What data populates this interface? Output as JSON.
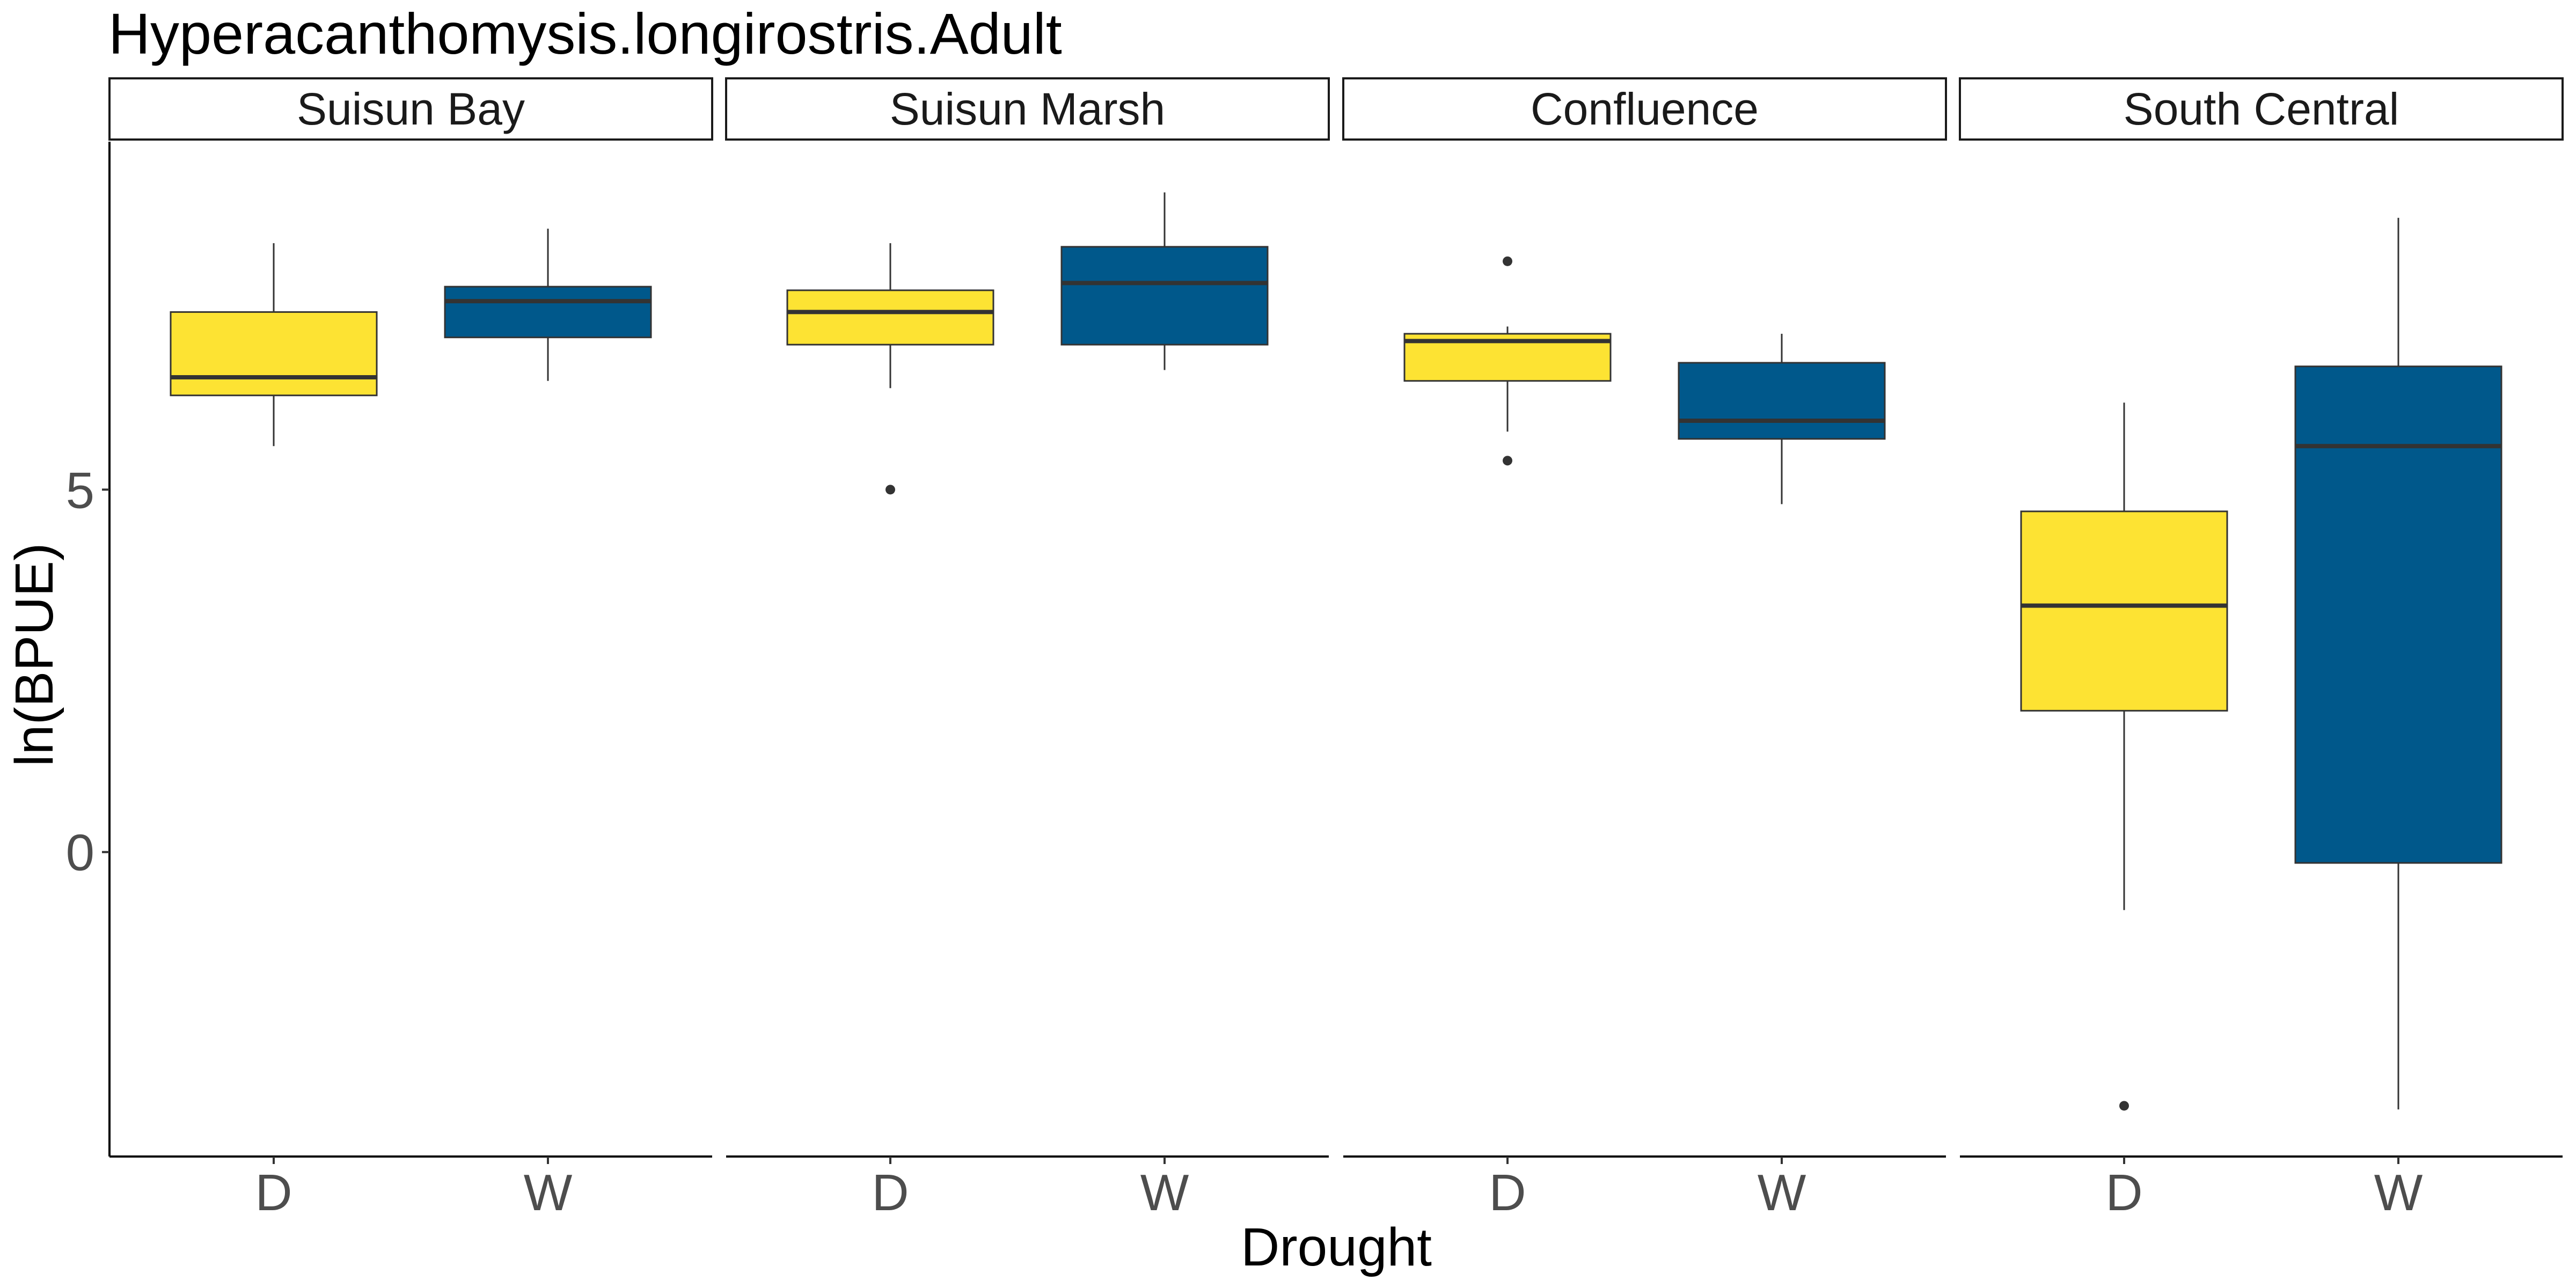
{
  "chart_data": {
    "type": "boxplot",
    "title": "Hyperacanthomysis.longirostris.Adult",
    "xlabel": "Drought",
    "ylabel": "ln(BPUE)",
    "ylim": [
      -4.2,
      9.8
    ],
    "yticks": [
      0,
      5
    ],
    "categories": [
      "D",
      "W"
    ],
    "fill_colors": {
      "D": "#FDE333",
      "W": "#00588B"
    },
    "grid": false,
    "legend": "none",
    "facets": [
      {
        "label": "Suisun Bay",
        "boxes": [
          {
            "category": "D",
            "whisker_low": 5.6,
            "q1": 6.3,
            "median": 6.55,
            "q3": 7.45,
            "whisker_high": 8.4,
            "outliers": []
          },
          {
            "category": "W",
            "whisker_low": 6.5,
            "q1": 7.1,
            "median": 7.6,
            "q3": 7.8,
            "whisker_high": 8.6,
            "outliers": []
          }
        ]
      },
      {
        "label": "Suisun Marsh",
        "boxes": [
          {
            "category": "D",
            "whisker_low": 6.4,
            "q1": 7.0,
            "median": 7.45,
            "q3": 7.75,
            "whisker_high": 8.4,
            "outliers": [
              5.0
            ]
          },
          {
            "category": "W",
            "whisker_low": 6.65,
            "q1": 7.0,
            "median": 7.85,
            "q3": 8.35,
            "whisker_high": 9.1,
            "outliers": []
          }
        ]
      },
      {
        "label": "Confluence",
        "boxes": [
          {
            "category": "D",
            "whisker_low": 5.8,
            "q1": 6.5,
            "median": 7.05,
            "q3": 7.15,
            "whisker_high": 7.25,
            "outliers": [
              8.15,
              5.4
            ]
          },
          {
            "category": "W",
            "whisker_low": 4.8,
            "q1": 5.7,
            "median": 5.95,
            "q3": 6.75,
            "whisker_high": 7.15,
            "outliers": []
          }
        ]
      },
      {
        "label": "South Central",
        "boxes": [
          {
            "category": "D",
            "whisker_low": -0.8,
            "q1": 1.95,
            "median": 3.4,
            "q3": 4.7,
            "whisker_high": 6.2,
            "outliers": [
              -3.5
            ]
          },
          {
            "category": "W",
            "whisker_low": -3.55,
            "q1": -0.15,
            "median": 5.6,
            "q3": 6.7,
            "whisker_high": 8.75,
            "outliers": []
          }
        ]
      }
    ]
  }
}
